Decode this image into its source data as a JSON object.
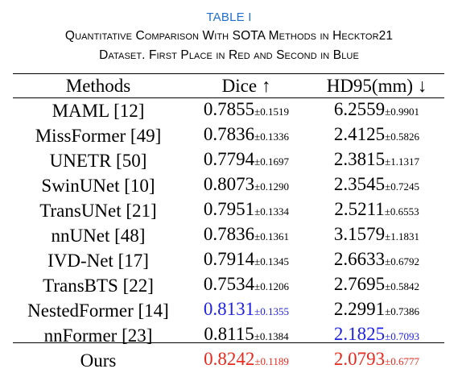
{
  "caption": {
    "label": "TABLE I",
    "line1": "Quantitative Comparison With SOTA Methods in Hecktor21",
    "line2": "Dataset. First Place in Red and Second in Blue"
  },
  "colors": {
    "first_place": "#e8291e",
    "second_place": "#1f22e6",
    "caption_label": "#1f6fd0"
  },
  "table": {
    "headers": [
      "Methods",
      "Dice ↑",
      "HD95(mm) ↓"
    ],
    "rows": [
      {
        "method": "MAML [12]",
        "dice": "0.7855",
        "dice_std": "±0.1519",
        "hd95": "6.2559",
        "hd95_std": "±0.9901",
        "dice_rank": "",
        "hd95_rank": ""
      },
      {
        "method": "MissFormer [49]",
        "dice": "0.7836",
        "dice_std": "±0.1336",
        "hd95": "2.4125",
        "hd95_std": "±0.5826",
        "dice_rank": "",
        "hd95_rank": ""
      },
      {
        "method": "UNETR [50]",
        "dice": "0.7794",
        "dice_std": "±0.1697",
        "hd95": "2.3815",
        "hd95_std": "±1.1317",
        "dice_rank": "",
        "hd95_rank": ""
      },
      {
        "method": "SwinUNet [10]",
        "dice": "0.8073",
        "dice_std": "±0.1290",
        "hd95": "2.3545",
        "hd95_std": "±0.7245",
        "dice_rank": "",
        "hd95_rank": ""
      },
      {
        "method": "TransUNet [21]",
        "dice": "0.7951",
        "dice_std": "±0.1334",
        "hd95": "2.5211",
        "hd95_std": "±0.6553",
        "dice_rank": "",
        "hd95_rank": ""
      },
      {
        "method": "nnUNet [48]",
        "dice": "0.7836",
        "dice_std": "±0.1361",
        "hd95": "3.1579",
        "hd95_std": "±1.1831",
        "dice_rank": "",
        "hd95_rank": ""
      },
      {
        "method": "IVD-Net [17]",
        "dice": "0.7914",
        "dice_std": "±0.1345",
        "hd95": "2.6633",
        "hd95_std": "±0.6792",
        "dice_rank": "",
        "hd95_rank": ""
      },
      {
        "method": "TransBTS [22]",
        "dice": "0.7534",
        "dice_std": "±0.1206",
        "hd95": "2.7695",
        "hd95_std": "±0.5842",
        "dice_rank": "",
        "hd95_rank": ""
      },
      {
        "method": "NestedFormer [14]",
        "dice": "0.8131",
        "dice_std": "±0.1355",
        "hd95": "2.2991",
        "hd95_std": "±0.7386",
        "dice_rank": "second",
        "hd95_rank": ""
      },
      {
        "method": "nnFormer [23]",
        "dice": "0.8115",
        "dice_std": "±0.1384",
        "hd95": "2.1825",
        "hd95_std": "±0.7093",
        "dice_rank": "",
        "hd95_rank": "second"
      },
      {
        "method": "Ours",
        "dice": "0.8242",
        "dice_std": "±0.1189",
        "hd95": "2.0793",
        "hd95_std": "±0.6777",
        "dice_rank": "first",
        "hd95_rank": "first"
      }
    ]
  }
}
